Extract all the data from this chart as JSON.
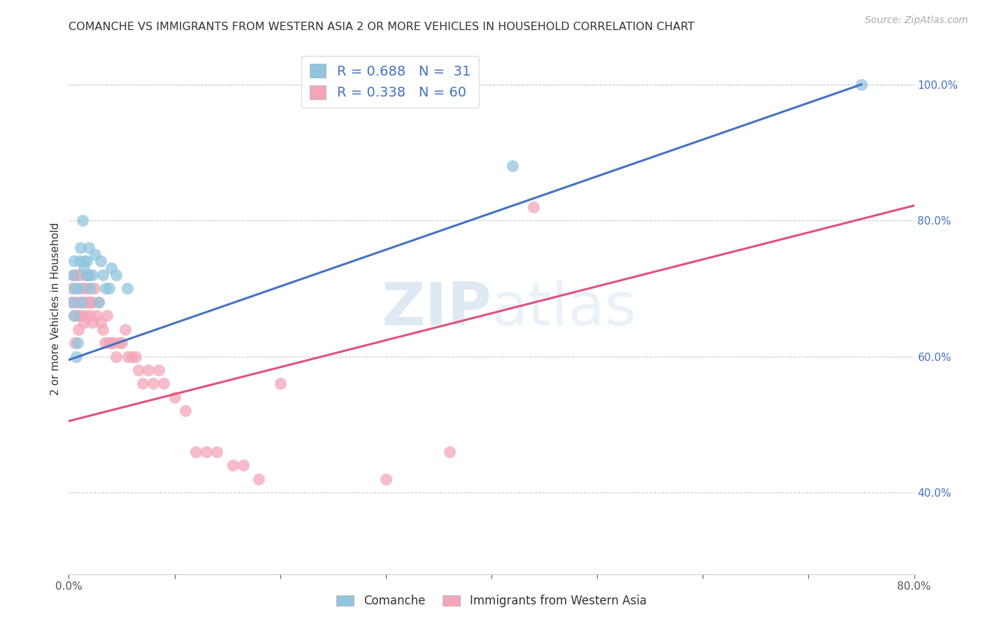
{
  "title": "COMANCHE VS IMMIGRANTS FROM WESTERN ASIA 2 OR MORE VEHICLES IN HOUSEHOLD CORRELATION CHART",
  "source": "Source: ZipAtlas.com",
  "ylabel": "2 or more Vehicles in Household",
  "xlim": [
    0.0,
    0.8
  ],
  "ylim": [
    0.28,
    1.06
  ],
  "right_yticks": [
    0.4,
    0.6,
    0.8,
    1.0
  ],
  "right_yticklabels": [
    "40.0%",
    "60.0%",
    "80.0%",
    "100.0%"
  ],
  "blue_color": "#92c5de",
  "pink_color": "#f4a6b8",
  "line_blue": "#4472c4",
  "line_pink": "#e05080",
  "blue_line_x0": 0.0,
  "blue_line_y0": 0.595,
  "blue_line_x1": 0.75,
  "blue_line_y1": 1.0,
  "pink_line_x0": 0.0,
  "pink_line_y0": 0.505,
  "pink_line_x1": 0.8,
  "pink_line_y1": 0.822,
  "comanche_x": [
    0.003,
    0.004,
    0.005,
    0.005,
    0.006,
    0.007,
    0.008,
    0.009,
    0.01,
    0.011,
    0.012,
    0.013,
    0.014,
    0.015,
    0.016,
    0.017,
    0.018,
    0.019,
    0.02,
    0.022,
    0.025,
    0.028,
    0.03,
    0.032,
    0.035,
    0.038,
    0.04,
    0.045,
    0.055,
    0.42,
    0.75
  ],
  "comanche_y": [
    0.68,
    0.72,
    0.66,
    0.74,
    0.7,
    0.6,
    0.62,
    0.7,
    0.74,
    0.76,
    0.68,
    0.8,
    0.73,
    0.74,
    0.72,
    0.74,
    0.72,
    0.76,
    0.7,
    0.72,
    0.75,
    0.68,
    0.74,
    0.72,
    0.7,
    0.7,
    0.73,
    0.72,
    0.7,
    0.88,
    1.0
  ],
  "western_asia_x": [
    0.003,
    0.004,
    0.005,
    0.005,
    0.006,
    0.007,
    0.007,
    0.008,
    0.009,
    0.01,
    0.01,
    0.011,
    0.012,
    0.013,
    0.014,
    0.015,
    0.016,
    0.016,
    0.017,
    0.018,
    0.019,
    0.02,
    0.021,
    0.022,
    0.023,
    0.024,
    0.026,
    0.028,
    0.03,
    0.032,
    0.034,
    0.036,
    0.038,
    0.04,
    0.042,
    0.045,
    0.048,
    0.05,
    0.053,
    0.056,
    0.06,
    0.063,
    0.066,
    0.07,
    0.075,
    0.08,
    0.085,
    0.09,
    0.1,
    0.11,
    0.12,
    0.13,
    0.14,
    0.155,
    0.165,
    0.18,
    0.2,
    0.3,
    0.36,
    0.44
  ],
  "western_asia_y": [
    0.7,
    0.68,
    0.66,
    0.72,
    0.62,
    0.68,
    0.72,
    0.66,
    0.64,
    0.68,
    0.72,
    0.66,
    0.68,
    0.7,
    0.65,
    0.66,
    0.68,
    0.72,
    0.7,
    0.68,
    0.72,
    0.66,
    0.68,
    0.65,
    0.68,
    0.7,
    0.66,
    0.68,
    0.65,
    0.64,
    0.62,
    0.66,
    0.62,
    0.62,
    0.62,
    0.6,
    0.62,
    0.62,
    0.64,
    0.6,
    0.6,
    0.6,
    0.58,
    0.56,
    0.58,
    0.56,
    0.58,
    0.56,
    0.54,
    0.52,
    0.46,
    0.46,
    0.46,
    0.44,
    0.44,
    0.42,
    0.56,
    0.42,
    0.46,
    0.82
  ]
}
